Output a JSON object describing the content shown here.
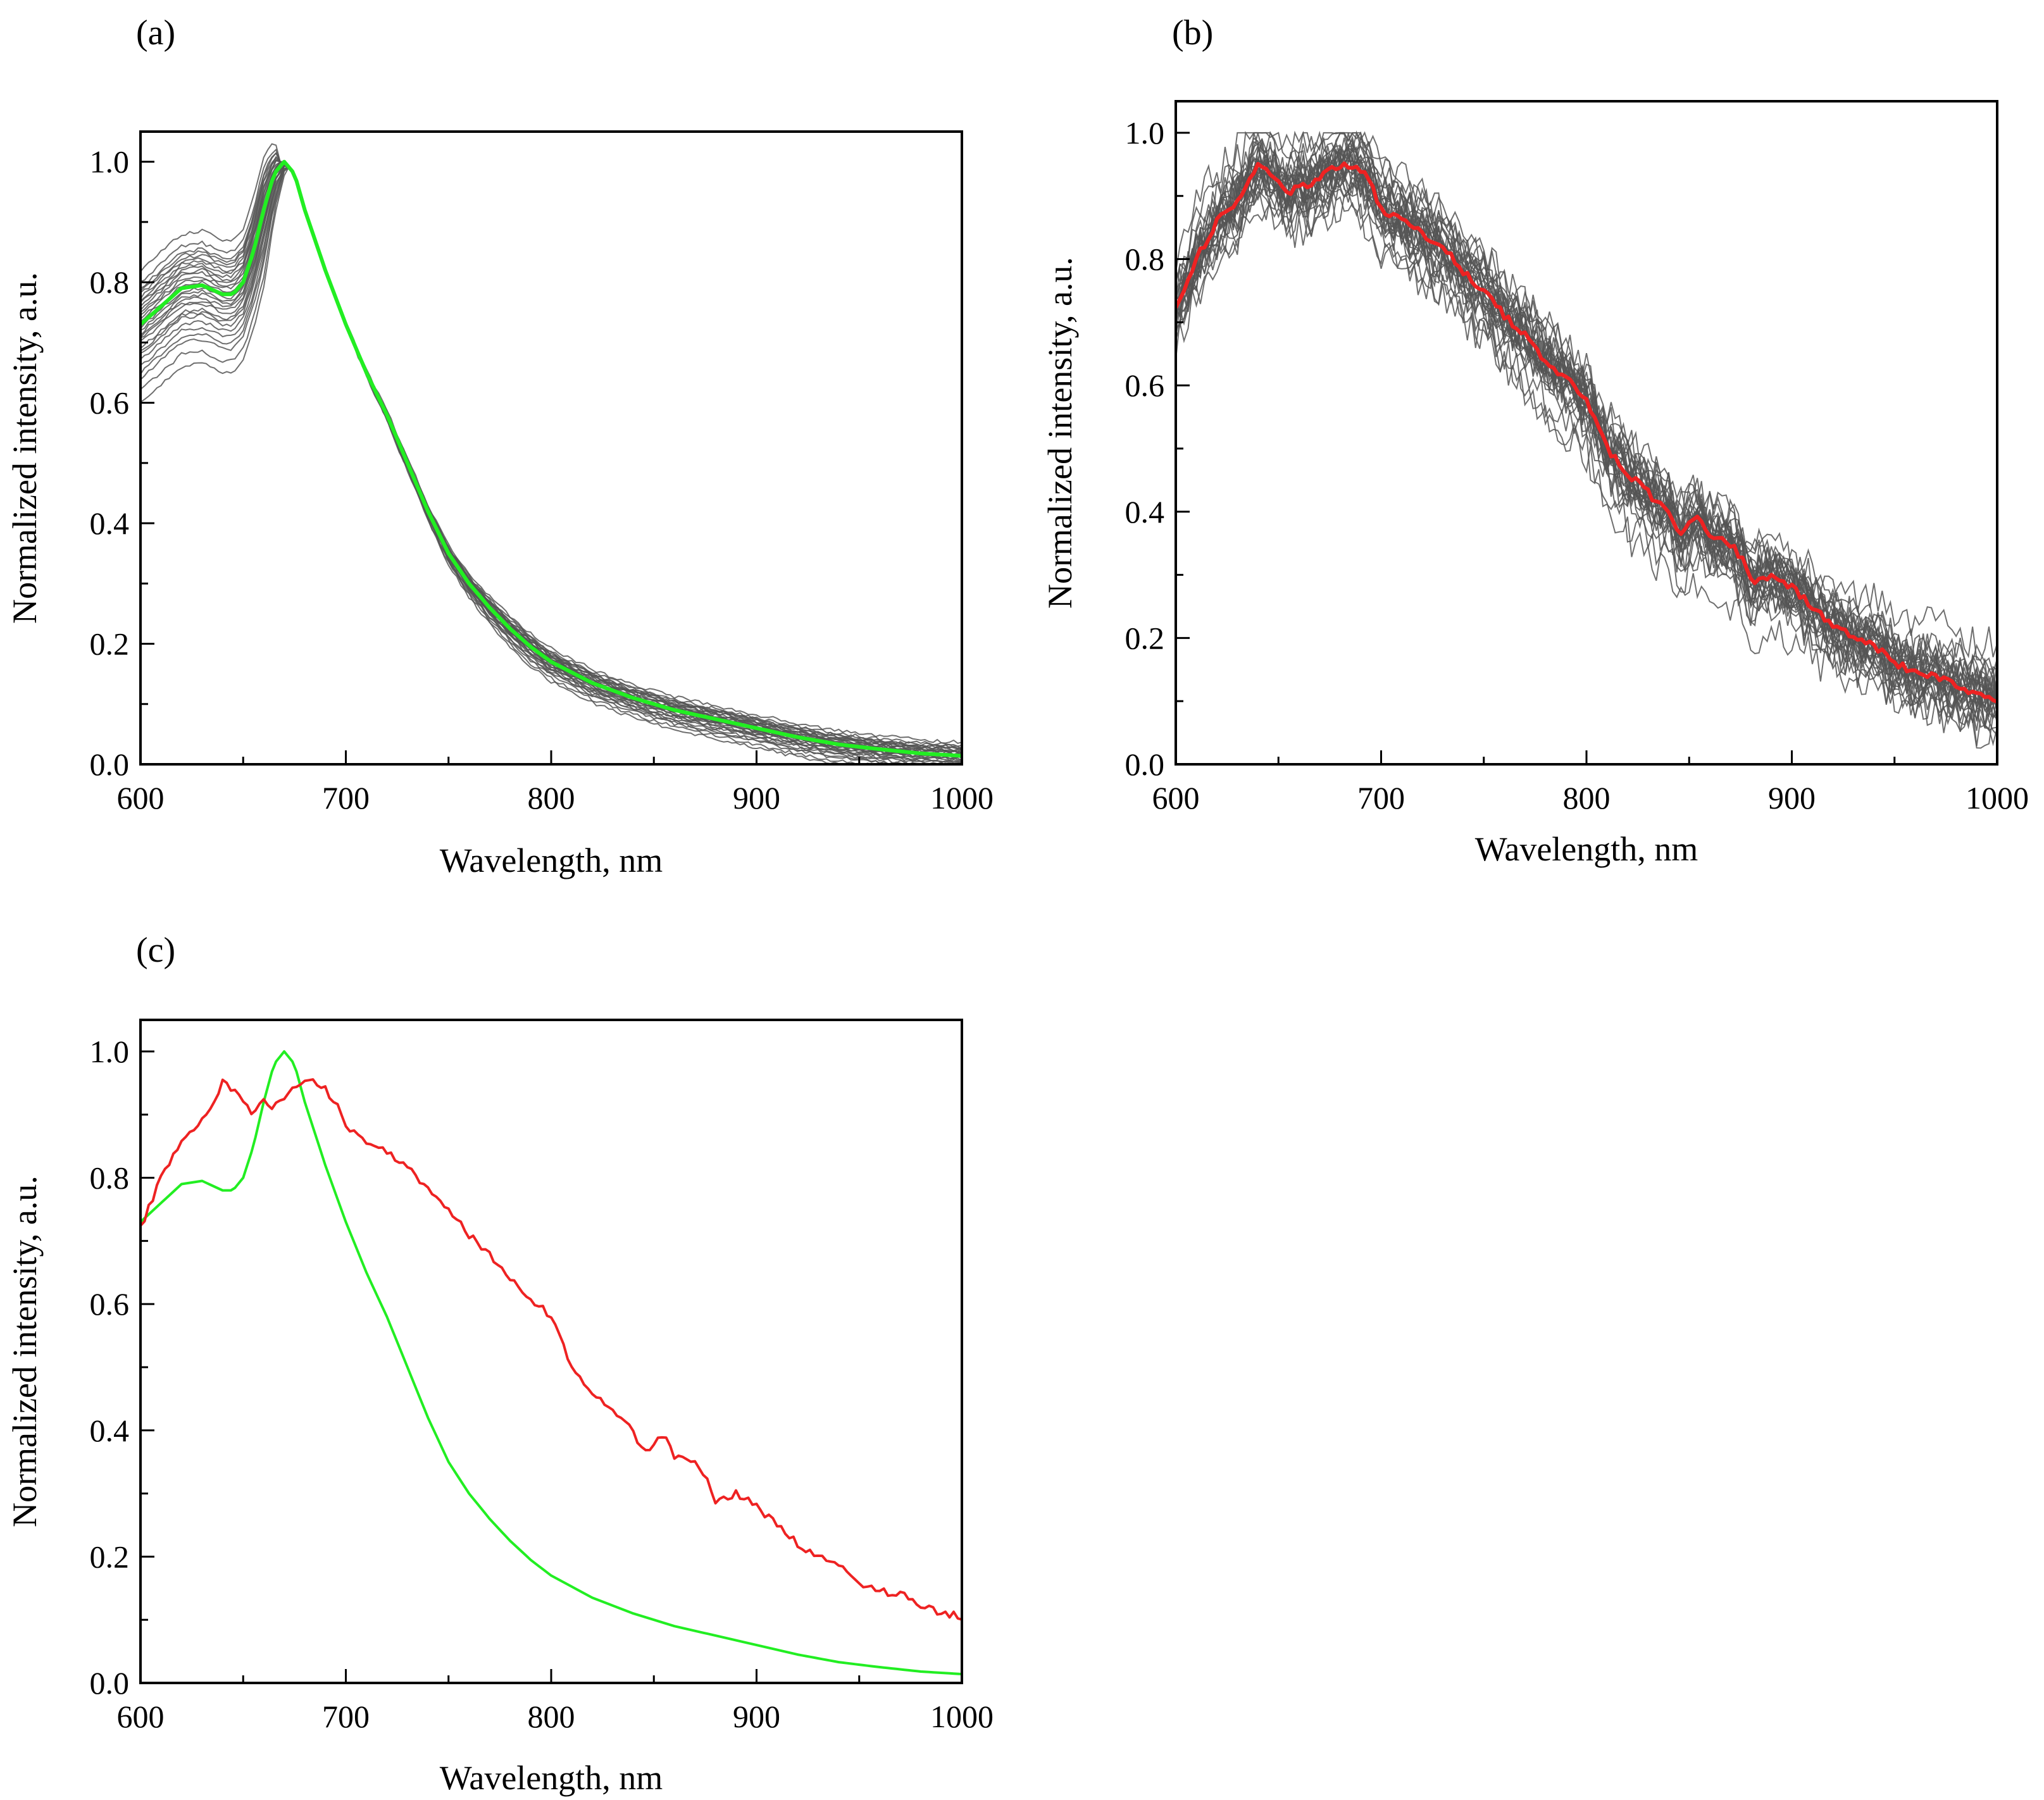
{
  "figure": {
    "background": "#ffffff"
  },
  "chart_data": [
    {
      "type": "line",
      "panel_label": "(a)",
      "xlabel": "Wavelength, nm",
      "ylabel": "Normalized intensity, a.u.",
      "xlim": [
        600,
        1000
      ],
      "ylim": [
        0.0,
        1.05
      ],
      "xticks": [
        "600",
        "700",
        "800",
        "900",
        "1000"
      ],
      "yticks": [
        "0.0",
        "0.2",
        "0.4",
        "0.6",
        "0.8",
        "1.0"
      ],
      "grid": false,
      "legend": "none",
      "ensemble": {
        "count": 30,
        "color": "#555555",
        "description_of_spread": "individual normalized spectra",
        "offsets": [
          -0.13,
          -0.11,
          -0.09,
          -0.08,
          -0.07,
          -0.06,
          -0.05,
          -0.045,
          -0.04,
          -0.03,
          -0.025,
          -0.02,
          -0.015,
          -0.01,
          -0.005,
          0.0,
          0.005,
          0.01,
          0.015,
          0.02,
          0.025,
          0.03,
          0.035,
          0.04,
          0.045,
          0.05,
          0.055,
          0.06,
          0.07,
          0.09
        ]
      },
      "series": [
        {
          "color": "#22ee22",
          "x": [
            600,
            610,
            620,
            630,
            640,
            645,
            650,
            655,
            660,
            665,
            670,
            675,
            680,
            690,
            700,
            710,
            720,
            730,
            740,
            750,
            760,
            770,
            780,
            790,
            800,
            820,
            840,
            860,
            880,
            900,
            920,
            940,
            960,
            980,
            1000
          ],
          "y": [
            0.73,
            0.76,
            0.79,
            0.795,
            0.78,
            0.78,
            0.8,
            0.85,
            0.92,
            0.98,
            1.0,
            0.98,
            0.92,
            0.82,
            0.73,
            0.65,
            0.58,
            0.5,
            0.42,
            0.35,
            0.3,
            0.26,
            0.225,
            0.195,
            0.17,
            0.135,
            0.11,
            0.09,
            0.075,
            0.06,
            0.045,
            0.033,
            0.025,
            0.018,
            0.014
          ]
        }
      ]
    },
    {
      "type": "line",
      "panel_label": "(b)",
      "xlabel": "Wavelength, nm",
      "ylabel": "Normalized intensity, a.u.",
      "xlim": [
        600,
        1000
      ],
      "ylim": [
        0.0,
        1.05
      ],
      "xticks": [
        "600",
        "700",
        "800",
        "900",
        "1000"
      ],
      "yticks": [
        "0.0",
        "0.2",
        "0.4",
        "0.6",
        "0.8",
        "1.0"
      ],
      "grid": false,
      "legend": "none",
      "ensemble": {
        "count": 30,
        "color": "#555555",
        "description_of_spread": "individual normalized spectra",
        "offsets": [
          -0.1,
          -0.085,
          -0.075,
          -0.065,
          -0.055,
          -0.05,
          -0.045,
          -0.04,
          -0.035,
          -0.03,
          -0.025,
          -0.02,
          -0.015,
          -0.01,
          -0.005,
          0.0,
          0.005,
          0.01,
          0.015,
          0.02,
          0.025,
          0.03,
          0.035,
          0.04,
          0.045,
          0.05,
          0.055,
          0.06,
          0.07,
          0.085
        ]
      },
      "series": [
        {
          "color": "#ee2222",
          "x": [
            600,
            610,
            620,
            630,
            635,
            640,
            645,
            650,
            655,
            660,
            665,
            670,
            675,
            680,
            685,
            690,
            695,
            700,
            710,
            720,
            730,
            740,
            750,
            760,
            770,
            780,
            790,
            800,
            810,
            820,
            830,
            840,
            845,
            850,
            855,
            860,
            870,
            875,
            880,
            890,
            900,
            910,
            920,
            930,
            940,
            950,
            960,
            970,
            980,
            990,
            1000
          ],
          "y": [
            0.72,
            0.8,
            0.86,
            0.89,
            0.92,
            0.95,
            0.94,
            0.92,
            0.9,
            0.92,
            0.91,
            0.93,
            0.94,
            0.95,
            0.95,
            0.94,
            0.92,
            0.88,
            0.86,
            0.84,
            0.82,
            0.78,
            0.75,
            0.71,
            0.68,
            0.64,
            0.61,
            0.58,
            0.5,
            0.46,
            0.43,
            0.4,
            0.36,
            0.38,
            0.39,
            0.36,
            0.35,
            0.33,
            0.29,
            0.3,
            0.28,
            0.25,
            0.22,
            0.2,
            0.19,
            0.16,
            0.145,
            0.14,
            0.125,
            0.11,
            0.105
          ]
        }
      ]
    },
    {
      "type": "line",
      "panel_label": "(c)",
      "xlabel": "Wavelength, nm",
      "ylabel": "Normalized intensity, a.u.",
      "xlim": [
        600,
        1000
      ],
      "ylim": [
        0.0,
        1.05
      ],
      "xticks": [
        "600",
        "700",
        "800",
        "900",
        "1000"
      ],
      "yticks": [
        "0.0",
        "0.2",
        "0.4",
        "0.6",
        "0.8",
        "1.0"
      ],
      "grid": false,
      "legend": "none",
      "series": [
        {
          "color": "#22ee22",
          "x": [
            600,
            610,
            620,
            630,
            640,
            645,
            650,
            655,
            660,
            665,
            670,
            675,
            680,
            690,
            700,
            710,
            720,
            730,
            740,
            750,
            760,
            770,
            780,
            790,
            800,
            820,
            840,
            860,
            880,
            900,
            920,
            940,
            960,
            980,
            1000
          ],
          "y": [
            0.73,
            0.76,
            0.79,
            0.795,
            0.78,
            0.78,
            0.8,
            0.85,
            0.92,
            0.98,
            1.0,
            0.98,
            0.92,
            0.82,
            0.73,
            0.65,
            0.58,
            0.5,
            0.42,
            0.35,
            0.3,
            0.26,
            0.225,
            0.195,
            0.17,
            0.135,
            0.11,
            0.09,
            0.075,
            0.06,
            0.045,
            0.033,
            0.025,
            0.018,
            0.014
          ]
        },
        {
          "color": "#ee2222",
          "x": [
            600,
            610,
            620,
            630,
            635,
            640,
            645,
            650,
            655,
            660,
            665,
            670,
            675,
            680,
            685,
            690,
            695,
            700,
            710,
            720,
            730,
            740,
            750,
            760,
            770,
            780,
            790,
            800,
            810,
            820,
            830,
            840,
            845,
            850,
            855,
            860,
            870,
            875,
            880,
            890,
            900,
            910,
            920,
            930,
            940,
            950,
            960,
            970,
            980,
            990,
            1000
          ],
          "y": [
            0.72,
            0.8,
            0.86,
            0.89,
            0.92,
            0.95,
            0.94,
            0.92,
            0.9,
            0.92,
            0.91,
            0.93,
            0.94,
            0.95,
            0.95,
            0.94,
            0.92,
            0.88,
            0.86,
            0.84,
            0.82,
            0.78,
            0.75,
            0.71,
            0.68,
            0.64,
            0.61,
            0.58,
            0.5,
            0.46,
            0.43,
            0.4,
            0.36,
            0.38,
            0.39,
            0.36,
            0.35,
            0.33,
            0.29,
            0.3,
            0.28,
            0.25,
            0.22,
            0.2,
            0.19,
            0.16,
            0.145,
            0.14,
            0.125,
            0.11,
            0.105
          ]
        }
      ]
    }
  ]
}
